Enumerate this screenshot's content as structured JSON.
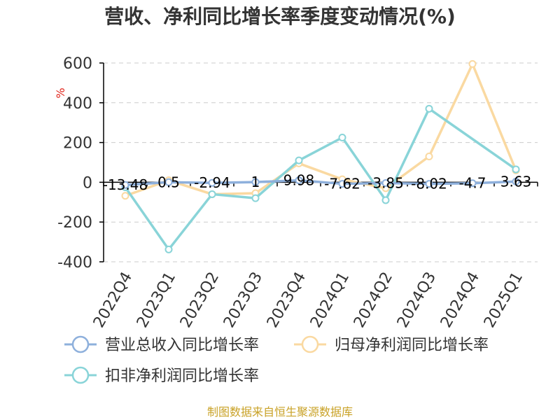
{
  "chart_data": {
    "type": "line",
    "title": "营收、净利同比增长率季度变动情况(%)",
    "ylabel": "%",
    "ylim": [
      -400,
      600
    ],
    "yticks": [
      600,
      400,
      200,
      0,
      -200,
      -400
    ],
    "categories": [
      "2022Q4",
      "2023Q1",
      "2023Q2",
      "2023Q3",
      "2023Q4",
      "2024Q1",
      "2024Q2",
      "2024Q3",
      "2024Q4",
      "2025Q1"
    ],
    "grid": true,
    "legend_position": "bottom",
    "series": [
      {
        "name": "营业总收入同比增长率",
        "color": "#8eb0dc",
        "values": [
          -13.48,
          0.5,
          -2.94,
          1,
          9.98,
          -7.62,
          -3.85,
          -8.02,
          -4.7,
          3.63
        ],
        "labels": [
          "-13.48",
          "0.5",
          "-2.94",
          "1",
          "9.98",
          "-7.62",
          "-3.85",
          "-8.02",
          "-4.7",
          "3.63"
        ]
      },
      {
        "name": "归母净利润同比增长率",
        "color": "#fad9a1",
        "values": [
          -68,
          10,
          -60,
          -55,
          95,
          15,
          -30,
          130,
          595,
          60
        ]
      },
      {
        "name": "扣非净利润同比增长率",
        "color": "#89d4d8",
        "values": [
          -25,
          -338,
          -60,
          -80,
          110,
          225,
          -90,
          370,
          null,
          65
        ]
      }
    ],
    "source": "制图数据来自恒生聚源数据库"
  }
}
